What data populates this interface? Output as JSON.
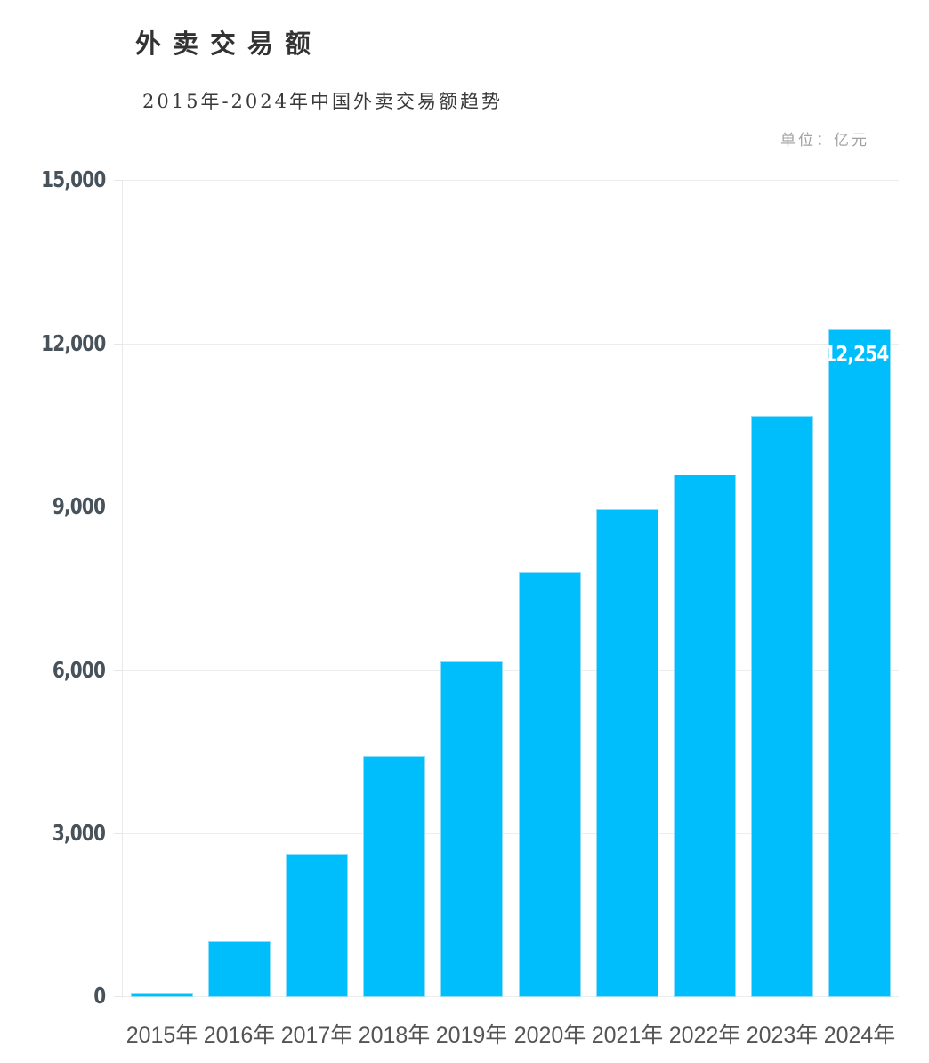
{
  "header": {
    "title": "外卖交易额",
    "subtitle": "2015年-2024年中国外卖交易额趋势",
    "units_label": "单位：亿元"
  },
  "chart_data": {
    "type": "bar",
    "title": "外卖交易额",
    "subtitle": "2015年-2024年中国外卖交易额趋势",
    "unit": "亿元",
    "categories": [
      "2015年",
      "2016年",
      "2017年",
      "2018年",
      "2019年",
      "2020年",
      "2021年",
      "2022年",
      "2023年",
      "2024年"
    ],
    "values": [
      75,
      1030,
      2630,
      4430,
      6160,
      7790,
      8950,
      9590,
      10670,
      12254
    ],
    "data_labels": [
      "",
      "",
      "",
      "",
      "",
      "",
      "",
      "",
      "",
      "12,254"
    ],
    "ylim": [
      0,
      15000
    ],
    "y_ticks": [
      0,
      3000,
      6000,
      9000,
      12000,
      15000
    ],
    "y_tick_labels": [
      "0",
      "3,000",
      "6,000",
      "9,000",
      "12,000",
      "15,000"
    ],
    "bar_color": "#00bdfb",
    "bar_stroke": "#8edefb",
    "label_color": "#ffffff",
    "grid": true,
    "legend": "none"
  }
}
